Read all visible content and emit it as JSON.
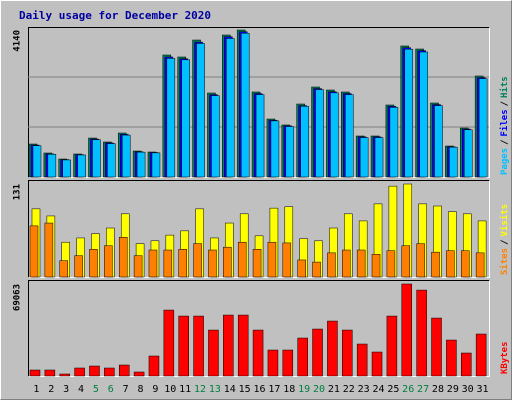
{
  "chart_data": {
    "type": "bar",
    "title": "Daily usage for December 2020",
    "categories": [
      "1",
      "2",
      "3",
      "4",
      "5",
      "6",
      "7",
      "8",
      "9",
      "10",
      "11",
      "12",
      "13",
      "14",
      "15",
      "16",
      "17",
      "18",
      "19",
      "20",
      "21",
      "22",
      "23",
      "24",
      "25",
      "26",
      "27",
      "28",
      "29",
      "30",
      "31"
    ],
    "category_colors": [
      "#000000",
      "#000000",
      "#000000",
      "#000000",
      "#008040",
      "#008040",
      "#000000",
      "#000000",
      "#000000",
      "#000000",
      "#000000",
      "#008040",
      "#008040",
      "#000000",
      "#000000",
      "#000000",
      "#000000",
      "#000000",
      "#008040",
      "#008040",
      "#000000",
      "#000000",
      "#000000",
      "#000000",
      "#000000",
      "#008040",
      "#008040",
      "#000000",
      "#000000",
      "#000000",
      "#000000"
    ],
    "legend_separator": "/",
    "panels": [
      {
        "ylim": [
          0,
          4140
        ],
        "yticks": [
          4140
        ],
        "grid": true,
        "series": [
          {
            "name": "Hits",
            "color": "#00805c",
            "values": [
              929,
              676,
              507,
              648,
              1098,
              986,
              1239,
              732,
              704,
              3436,
              3380,
              3858,
              2366,
              3999,
              4140,
              2394,
              1633,
              1465,
              2056,
              2535,
              2450,
              2394,
              1155,
              1155,
              2028,
              3690,
              3605,
              2084,
              873,
              1380,
              2845
            ]
          },
          {
            "name": "Files",
            "color": "#0000ff",
            "values": [
              900,
              650,
              490,
              630,
              1070,
              960,
              1200,
              710,
              690,
              3380,
              3330,
              3800,
              2320,
              3950,
              4090,
              2350,
              1600,
              1440,
              2010,
              2490,
              2400,
              2350,
              1130,
              1130,
              1990,
              3640,
              3560,
              2040,
              850,
              1350,
              2800
            ]
          },
          {
            "name": "Pages",
            "color": "#00c0ff",
            "values": [
              880,
              640,
              480,
              620,
              1050,
              940,
              1180,
              700,
              680,
              3340,
              3300,
              3760,
              2290,
              3900,
              4050,
              2320,
              1580,
              1420,
              1990,
              2460,
              2370,
              2320,
              1110,
              1110,
              1960,
              3600,
              3520,
              2010,
              840,
              1330,
              2770
            ]
          }
        ]
      },
      {
        "ylim": [
          0,
          131
        ],
        "yticks": [
          131
        ],
        "grid": false,
        "series": [
          {
            "name": "Visits",
            "color": "#ffff00",
            "values": [
              96,
              86,
              49,
              55,
              61,
              69,
              89,
              47,
              51,
              59,
              65,
              96,
              55,
              76,
              89,
              58,
              97,
              99,
              54,
              51,
              69,
              89,
              79,
              103,
              128,
              131,
              103,
              100,
              92,
              89,
              79
            ]
          },
          {
            "name": "Sites",
            "color": "#ff8000",
            "values": [
              72,
              76,
              23,
              30,
              39,
              44,
              56,
              30,
              38,
              38,
              39,
              47,
              38,
              42,
              49,
              39,
              49,
              48,
              24,
              21,
              34,
              38,
              38,
              32,
              37,
              44,
              47,
              35,
              37,
              37,
              34
            ]
          }
        ]
      },
      {
        "ylim": [
          0,
          69063
        ],
        "yticks": [
          69063
        ],
        "grid": false,
        "series": [
          {
            "name": "KBytes",
            "color": "#ff0000",
            "values": [
              4500,
              4500,
              1500,
              6000,
              7500,
              6000,
              8250,
              3000,
              15000,
              49500,
              45000,
              45000,
              34500,
              45750,
              45750,
              34500,
              19500,
              19500,
              28500,
              35250,
              41250,
              34500,
              24000,
              18000,
              45000,
              69063,
              64500,
              43500,
              27000,
              17250,
              31500
            ]
          }
        ]
      }
    ]
  }
}
